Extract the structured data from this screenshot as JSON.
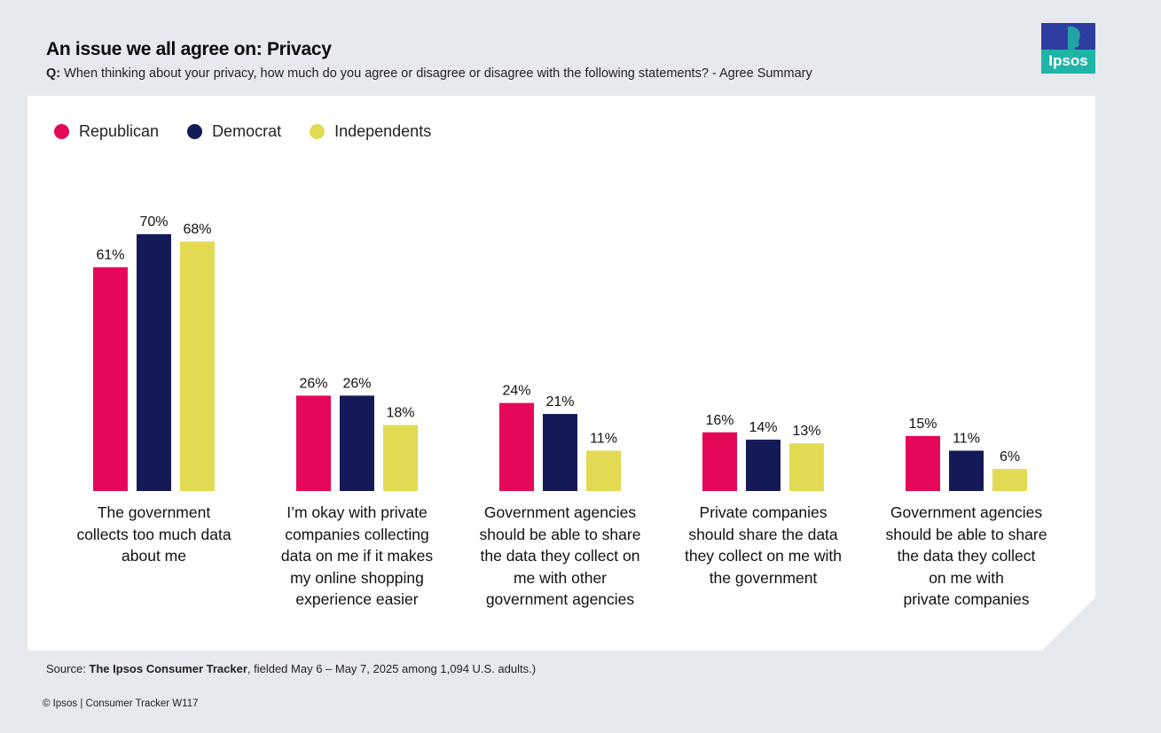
{
  "header": {
    "title": "An issue we all agree on: Privacy",
    "question_label": "Q:",
    "question_text": "When thinking about your privacy, how much do you agree or disagree or disagree with the following statements? - Agree Summary"
  },
  "logo": {
    "text": "Ipsos",
    "color_top": "#2e3da0",
    "color_bottom": "#1fb5a6"
  },
  "colors": {
    "Republican": "#e5085a",
    "Democrat": "#141a57",
    "Independents": "#e2da52"
  },
  "chart_data": {
    "type": "bar",
    "title": "An issue we all agree on: Privacy",
    "xlabel": "",
    "ylabel": "",
    "ylim": [
      0,
      100
    ],
    "grid": false,
    "legend_position": "top-left",
    "categories": [
      "The government collects too much data about me",
      "I'm okay with private companies collecting data on me if it makes my online shopping experience easier",
      "Government agencies should be able to share the data they collect on me with other government agencies",
      "Private companies should share the data they collect on me with the government",
      "Government agencies should be able to share the data they collect on me with private companies"
    ],
    "category_lines": [
      [
        "The government",
        "collects too much data",
        "about me"
      ],
      [
        "I’m okay with private",
        "companies collecting",
        "data on me if it makes",
        "my online shopping",
        "experience easier"
      ],
      [
        "Government agencies",
        "should be able to share",
        "the data they collect on",
        "me with other",
        "government agencies"
      ],
      [
        "Private companies",
        "should share the data",
        "they collect on me with",
        "the government"
      ],
      [
        "Government agencies",
        "should be able to share",
        "the data they collect",
        "on me with",
        "private companies"
      ]
    ],
    "series": [
      {
        "name": "Republican",
        "values": [
          61,
          26,
          24,
          16,
          15
        ],
        "labels": [
          "61%",
          "26%",
          "24%",
          "16%",
          "15%"
        ]
      },
      {
        "name": "Democrat",
        "values": [
          70,
          26,
          21,
          14,
          11
        ],
        "labels": [
          "70%",
          "26%",
          "21%",
          "14%",
          "11%"
        ]
      },
      {
        "name": "Independents",
        "values": [
          68,
          18,
          11,
          13,
          6
        ],
        "labels": [
          "68%",
          "18%",
          "11%",
          "13%",
          "6%"
        ]
      }
    ]
  },
  "footer": {
    "source_prefix": "Source: ",
    "source_bold": "The Ipsos Consumer Tracker",
    "source_rest": ", fielded May 6 – May 7, 2025 among 1,094 U.S. adults.)",
    "copyright": "© Ipsos | Consumer Tracker W117"
  }
}
